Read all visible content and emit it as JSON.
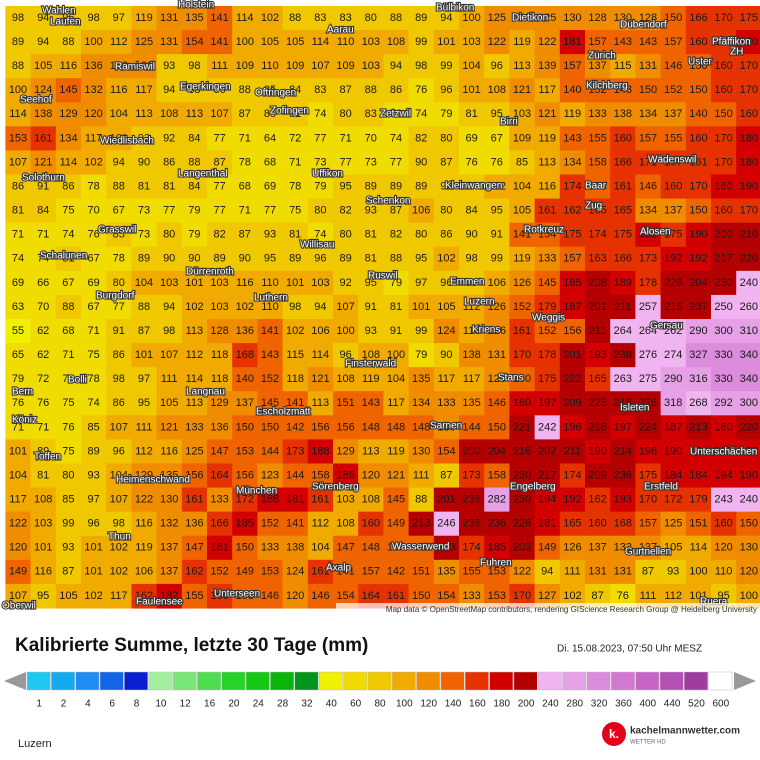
{
  "map": {
    "values": [
      [
        98,
        94,
        96,
        98,
        97,
        119,
        131,
        135,
        141,
        114,
        102,
        88,
        83,
        83,
        80,
        88,
        89,
        94,
        100,
        125,
        128,
        125,
        130,
        128,
        130,
        128,
        150,
        166,
        170,
        175
      ],
      [
        89,
        94,
        88,
        100,
        112,
        125,
        131,
        154,
        141,
        100,
        105,
        105,
        114,
        110,
        103,
        108,
        99,
        101,
        103,
        122,
        119,
        122,
        181,
        157,
        143,
        143,
        157,
        160,
        170,
        180
      ],
      [
        88,
        105,
        116,
        136,
        133,
        129,
        93,
        98,
        111,
        109,
        110,
        109,
        107,
        109,
        103,
        94,
        98,
        99,
        104,
        96,
        113,
        139,
        157,
        137,
        115,
        131,
        146,
        150,
        160,
        170
      ],
      [
        100,
        124,
        145,
        132,
        116,
        117,
        94,
        88,
        96,
        88,
        85,
        84,
        83,
        87,
        88,
        86,
        76,
        96,
        101,
        108,
        121,
        117,
        140,
        152,
        143,
        150,
        152,
        150,
        160,
        170
      ],
      [
        114,
        138,
        129,
        120,
        104,
        113,
        108,
        113,
        107,
        87,
        85,
        81,
        74,
        80,
        83,
        76,
        74,
        79,
        81,
        95,
        103,
        121,
        119,
        133,
        138,
        134,
        137,
        140,
        150,
        160
      ],
      [
        153,
        161,
        134,
        117,
        101,
        93,
        92,
        84,
        77,
        71,
        64,
        72,
        77,
        71,
        70,
        74,
        82,
        80,
        69,
        67,
        109,
        119,
        143,
        155,
        160,
        157,
        155,
        160,
        170,
        180
      ],
      [
        107,
        121,
        114,
        102,
        94,
        90,
        86,
        88,
        87,
        78,
        68,
        71,
        73,
        77,
        73,
        77,
        90,
        87,
        76,
        76,
        85,
        113,
        134,
        158,
        166,
        171,
        167,
        161,
        170,
        180
      ],
      [
        86,
        91,
        86,
        78,
        88,
        81,
        81,
        84,
        77,
        68,
        69,
        78,
        79,
        95,
        89,
        89,
        89,
        92,
        94,
        102,
        104,
        116,
        174,
        158,
        161,
        146,
        160,
        170,
        180,
        190
      ],
      [
        81,
        84,
        75,
        70,
        67,
        73,
        77,
        79,
        77,
        71,
        77,
        75,
        80,
        82,
        93,
        87,
        106,
        80,
        84,
        95,
        105,
        161,
        162,
        165,
        165,
        134,
        137,
        150,
        160,
        170
      ],
      [
        71,
        71,
        74,
        76,
        85,
        73,
        80,
        79,
        82,
        87,
        93,
        81,
        74,
        80,
        81,
        82,
        80,
        86,
        90,
        91,
        141,
        154,
        175,
        174,
        175,
        183,
        175,
        190,
        200,
        210
      ],
      [
        74,
        74,
        81,
        67,
        78,
        89,
        90,
        90,
        89,
        90,
        95,
        89,
        96,
        89,
        81,
        88,
        95,
        102,
        98,
        99,
        119,
        133,
        157,
        163,
        166,
        173,
        192,
        192,
        217,
        220
      ],
      [
        69,
        66,
        67,
        69,
        80,
        104,
        103,
        101,
        103,
        116,
        110,
        101,
        103,
        92,
        95,
        79,
        97,
        96,
        99,
        106,
        126,
        145,
        185,
        208,
        189,
        178,
        226,
        204,
        230,
        240
      ],
      [
        63,
        70,
        88,
        67,
        77,
        88,
        94,
        102,
        103,
        102,
        110,
        98,
        94,
        107,
        91,
        81,
        101,
        105,
        112,
        126,
        152,
        179,
        187,
        201,
        211,
        257,
        215,
        237,
        250,
        260
      ],
      [
        55,
        62,
        68,
        71,
        91,
        87,
        98,
        113,
        128,
        136,
        141,
        102,
        106,
        100,
        93,
        91,
        99,
        124,
        116,
        126,
        161,
        152,
        156,
        211,
        264,
        264,
        262,
        290,
        300,
        310
      ],
      [
        65,
        62,
        71,
        75,
        86,
        101,
        107,
        112,
        118,
        168,
        143,
        115,
        114,
        96,
        108,
        100,
        79,
        90,
        138,
        131,
        170,
        178,
        201,
        193,
        238,
        276,
        274,
        327,
        330,
        340
      ],
      [
        79,
        72,
        79,
        78,
        98,
        97,
        111,
        114,
        118,
        140,
        152,
        118,
        121,
        108,
        119,
        104,
        135,
        117,
        117,
        125,
        150,
        175,
        222,
        165,
        263,
        275,
        290,
        316,
        330,
        340
      ],
      [
        76,
        76,
        75,
        74,
        86,
        95,
        105,
        113,
        129,
        137,
        145,
        141,
        113,
        151,
        143,
        117,
        134,
        133,
        135,
        146,
        180,
        197,
        209,
        225,
        215,
        226,
        318,
        268,
        292,
        300
      ],
      [
        71,
        71,
        76,
        85,
        107,
        111,
        121,
        133,
        136,
        150,
        150,
        142,
        156,
        156,
        148,
        148,
        148,
        136,
        144,
        150,
        221,
        242,
        196,
        218,
        197,
        224,
        187,
        213,
        180,
        220
      ],
      [
        101,
        89,
        75,
        89,
        96,
        112,
        116,
        125,
        147,
        153,
        144,
        173,
        188,
        129,
        113,
        119,
        130,
        154,
        200,
        204,
        216,
        202,
        211,
        190,
        214,
        198,
        190,
        184,
        180,
        180
      ],
      [
        104,
        81,
        80,
        93,
        104,
        129,
        135,
        156,
        164,
        156,
        123,
        144,
        158,
        186,
        120,
        121,
        111,
        87,
        173,
        158,
        230,
        217,
        174,
        209,
        236,
        175,
        184,
        184,
        194,
        190
      ],
      [
        117,
        108,
        85,
        97,
        107,
        122,
        130,
        161,
        133,
        172,
        188,
        181,
        161,
        103,
        108,
        145,
        88,
        201,
        238,
        282,
        230,
        194,
        192,
        162,
        193,
        170,
        172,
        179,
        243,
        240
      ],
      [
        122,
        103,
        99,
        96,
        98,
        116,
        132,
        136,
        166,
        185,
        152,
        141,
        112,
        108,
        160,
        149,
        213,
        246,
        238,
        236,
        226,
        181,
        165,
        160,
        168,
        157,
        125,
        151,
        160,
        150
      ],
      [
        120,
        101,
        93,
        101,
        102,
        119,
        137,
        147,
        181,
        150,
        133,
        138,
        104,
        147,
        148,
        150,
        152,
        203,
        174,
        185,
        203,
        149,
        126,
        137,
        133,
        137,
        105,
        114,
        120,
        130
      ],
      [
        149,
        116,
        87,
        101,
        102,
        106,
        137,
        162,
        152,
        149,
        153,
        124,
        161,
        141,
        157,
        142,
        151,
        135,
        155,
        153,
        122,
        94,
        111,
        131,
        131,
        87,
        93,
        100,
        110,
        120
      ],
      [
        107,
        95,
        105,
        102,
        117,
        162,
        182,
        155,
        166,
        153,
        146,
        120,
        146,
        154,
        164,
        161,
        150,
        154,
        133,
        153,
        170,
        127,
        102,
        87,
        76,
        111,
        112,
        101,
        95,
        100
      ]
    ],
    "places": [
      "Wahlen",
      "Laufen",
      "Holstein",
      "Aarau",
      "Bülbikon",
      "Dietikon",
      "Dübendorf",
      "Pfäffikon",
      "ZH",
      "Ramiswil",
      "Zürich",
      "Uster",
      "Seehof",
      "Egerkingen",
      "Oftringen",
      "Zofingen",
      "Kilchberg",
      "Zetzwil",
      "Birri",
      "Wiedlisbach",
      "Wädenswil",
      "Solothurn",
      "Langenthal",
      "Uffikon",
      "Kleinwangen",
      "Baar",
      "Schenkon",
      "Zug",
      "Grasswil",
      "Willisau",
      "Rotkreuz",
      "Alosen",
      "Schalunen",
      "Dürrenroth",
      "Ruswil",
      "Emmen",
      "Burgdorf",
      "Luthern",
      "Luzern",
      "Weggis",
      "Kriens",
      "Gersau",
      "Finsterwald",
      "Bern",
      "Bolli",
      "Stans",
      "Langnau",
      "Köniz",
      "Escholzmatt",
      "Isleten",
      "Sarnen",
      "Toffen",
      "Unterschächen",
      "Heimenschwand",
      "Sörenberg",
      "Engelberg",
      "Erstfeld",
      "München",
      "Thun",
      "Wasserwend",
      "Gurtnellen",
      "Fuhren",
      "Axalp",
      "Oberwil",
      "Unterseen",
      "Faulensee",
      "Ruera"
    ],
    "attribution": "Map data © OpenStreetMap contributors, rendering GIScience Research Group @ Heidelberg University"
  },
  "header": {
    "title": "Kalibrierte Summe, letzte 30 Tage (mm)",
    "timestamp": "Di. 15.08.2023, 07:50 Uhr MESZ"
  },
  "legend": {
    "labels": [
      1,
      2,
      4,
      6,
      8,
      10,
      12,
      16,
      20,
      24,
      28,
      32,
      40,
      60,
      80,
      100,
      120,
      140,
      160,
      180,
      200,
      240,
      280,
      320,
      360,
      400,
      440,
      520,
      600
    ],
    "colors": [
      "#1ec8f0",
      "#14aaf0",
      "#1e8cf0",
      "#1464e6",
      "#0a1ed2",
      "#a0f0a0",
      "#78e678",
      "#50dc50",
      "#28d228",
      "#14c814",
      "#0ab40a",
      "#00961e",
      "#f0f000",
      "#f0dc00",
      "#f0c800",
      "#f0aa00",
      "#f08c00",
      "#f06400",
      "#e63200",
      "#d20000",
      "#b40000",
      "#f0b4f0",
      "#e6a0e6",
      "#dc8cdc",
      "#d278d2",
      "#c864c8",
      "#b450b4",
      "#a03ca0",
      "#ffffff"
    ]
  },
  "footer": {
    "location": "Luzern",
    "logo": "k.",
    "brand": "kachelmannwetter.com",
    "tagline": "WETTER HD"
  }
}
